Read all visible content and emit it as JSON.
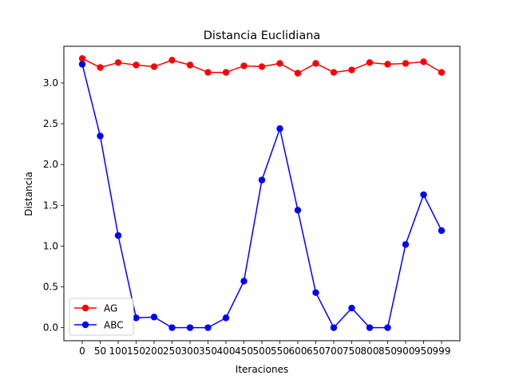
{
  "chart_data": {
    "type": "line",
    "title": "Distancia Euclidiana",
    "xlabel": "Iteraciones",
    "ylabel": "Distancia",
    "categories": [
      "0",
      "50",
      "100",
      "150",
      "200",
      "250",
      "300",
      "350",
      "400",
      "450",
      "500",
      "550",
      "600",
      "650",
      "700",
      "750",
      "800",
      "850",
      "900",
      "950",
      "999"
    ],
    "ylim": [
      -0.16,
      3.45
    ],
    "yticks": [
      0.0,
      0.5,
      1.0,
      1.5,
      2.0,
      2.5,
      3.0
    ],
    "ytick_labels": [
      "0.0",
      "0.5",
      "1.0",
      "1.5",
      "2.0",
      "2.5",
      "3.0"
    ],
    "grid": false,
    "legend_position": "lower-left",
    "series": [
      {
        "name": "AG",
        "color": "#ff0000",
        "values": [
          3.3,
          3.19,
          3.25,
          3.22,
          3.2,
          3.28,
          3.22,
          3.13,
          3.13,
          3.21,
          3.2,
          3.24,
          3.12,
          3.24,
          3.13,
          3.16,
          3.25,
          3.23,
          3.24,
          3.26,
          3.13
        ]
      },
      {
        "name": "ABC",
        "color": "#0000ff",
        "values": [
          3.23,
          2.35,
          1.13,
          0.12,
          0.13,
          0.0,
          0.0,
          0.0,
          0.12,
          0.57,
          1.81,
          2.44,
          1.44,
          0.43,
          0.0,
          0.24,
          0.0,
          0.0,
          1.02,
          1.63,
          1.19
        ]
      }
    ]
  }
}
